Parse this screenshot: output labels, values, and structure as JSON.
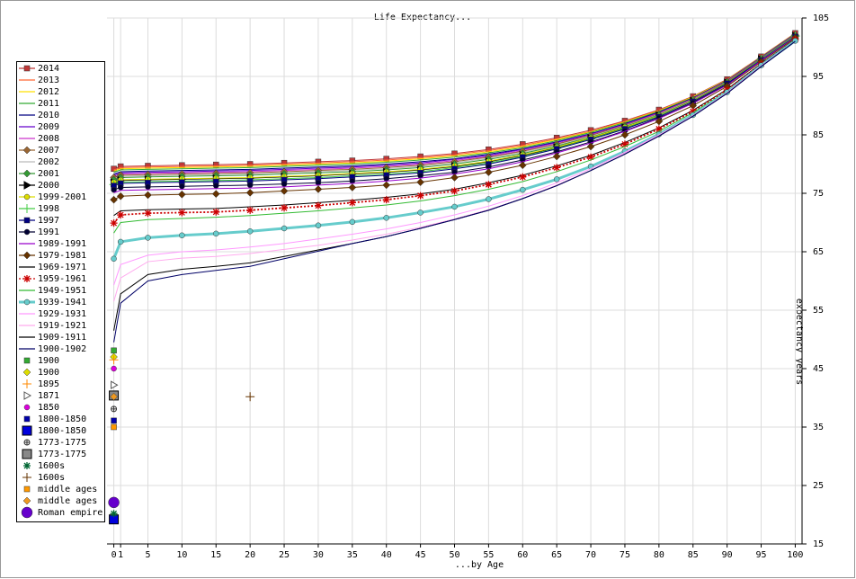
{
  "chart_data": {
    "type": "line",
    "title": "Life Expectancy...",
    "x_label": "...by Age",
    "y_label": "expectancy years",
    "x": [
      0,
      1,
      5,
      10,
      15,
      20,
      25,
      30,
      35,
      40,
      45,
      50,
      55,
      60,
      65,
      70,
      75,
      80,
      85,
      90,
      95,
      100
    ],
    "xticks": [
      0,
      1,
      5,
      10,
      15,
      20,
      25,
      30,
      35,
      40,
      45,
      50,
      55,
      60,
      65,
      70,
      75,
      80,
      85,
      90,
      95,
      100
    ],
    "xlim": [
      -1,
      101
    ],
    "ylim": [
      15,
      105
    ],
    "yticks": [
      15,
      25,
      35,
      45,
      55,
      65,
      75,
      85,
      95,
      105
    ],
    "grid": true,
    "legend": "left",
    "series": [
      {
        "name": "2014",
        "color": "#c03838",
        "marker": "square",
        "values": [
          79.2,
          79.6,
          79.7,
          79.8,
          79.9,
          80.0,
          80.2,
          80.4,
          80.6,
          80.9,
          81.3,
          81.8,
          82.5,
          83.4,
          84.5,
          85.8,
          87.4,
          89.3,
          91.6,
          94.5,
          98.4,
          102.4
        ]
      },
      {
        "name": "2013",
        "color": "#ff6633",
        "marker": "none",
        "values": [
          79.0,
          79.4,
          79.5,
          79.6,
          79.7,
          79.8,
          80.0,
          80.2,
          80.4,
          80.7,
          81.1,
          81.6,
          82.3,
          83.2,
          84.3,
          85.6,
          87.3,
          89.2,
          91.5,
          94.4,
          98.4,
          102.4
        ]
      },
      {
        "name": "2012",
        "color": "#ffe000",
        "marker": "none",
        "values": [
          78.8,
          79.2,
          79.3,
          79.4,
          79.5,
          79.6,
          79.8,
          80.0,
          80.2,
          80.5,
          80.9,
          81.4,
          82.1,
          83.0,
          84.2,
          85.5,
          87.2,
          89.1,
          91.5,
          94.4,
          98.3,
          102.3
        ]
      },
      {
        "name": "2011",
        "color": "#33aa33",
        "marker": "none",
        "values": [
          78.6,
          79.0,
          79.1,
          79.2,
          79.3,
          79.4,
          79.6,
          79.8,
          80.0,
          80.3,
          80.7,
          81.2,
          81.9,
          82.8,
          84.0,
          85.4,
          87.1,
          89.0,
          91.4,
          94.3,
          98.3,
          102.3
        ]
      },
      {
        "name": "2010",
        "color": "#000080",
        "marker": "none",
        "values": [
          78.3,
          78.7,
          78.8,
          78.9,
          79.0,
          79.1,
          79.3,
          79.5,
          79.7,
          80.0,
          80.4,
          80.9,
          81.7,
          82.6,
          83.8,
          85.2,
          86.9,
          88.9,
          91.3,
          94.3,
          98.2,
          102.2
        ]
      },
      {
        "name": "2009",
        "color": "#6600cc",
        "marker": "none",
        "values": [
          78.1,
          78.5,
          78.6,
          78.7,
          78.8,
          78.9,
          79.1,
          79.3,
          79.5,
          79.8,
          80.2,
          80.8,
          81.5,
          82.5,
          83.7,
          85.1,
          86.8,
          88.8,
          91.2,
          94.2,
          98.2,
          102.2
        ]
      },
      {
        "name": "2008",
        "color": "#cc33cc",
        "marker": "none",
        "values": [
          77.9,
          78.3,
          78.4,
          78.5,
          78.6,
          78.7,
          78.9,
          79.1,
          79.3,
          79.6,
          80.0,
          80.6,
          81.3,
          82.3,
          83.5,
          85.0,
          86.7,
          88.7,
          91.2,
          94.2,
          98.1,
          102.1
        ]
      },
      {
        "name": "2007",
        "color": "#996633",
        "marker": "diamond",
        "values": [
          77.7,
          78.1,
          78.2,
          78.3,
          78.4,
          78.5,
          78.7,
          78.9,
          79.1,
          79.4,
          79.8,
          80.4,
          81.2,
          82.2,
          83.4,
          84.9,
          86.6,
          88.6,
          91.1,
          94.1,
          98.1,
          102.1
        ]
      },
      {
        "name": "2002",
        "color": "#bbbbbb",
        "marker": "none",
        "values": [
          77.5,
          77.9,
          78.0,
          78.1,
          78.2,
          78.3,
          78.5,
          78.7,
          78.9,
          79.2,
          79.6,
          80.2,
          81.0,
          82.0,
          83.2,
          84.7,
          86.5,
          88.5,
          91.0,
          94.0,
          98.0,
          102.0
        ]
      },
      {
        "name": "2001",
        "color": "#339933",
        "marker": "diamond",
        "values": [
          77.3,
          77.7,
          77.8,
          77.9,
          78.0,
          78.1,
          78.3,
          78.5,
          78.7,
          79.0,
          79.4,
          80.0,
          80.8,
          81.8,
          83.1,
          84.6,
          86.4,
          88.4,
          90.9,
          94.0,
          98.0,
          102.0
        ]
      },
      {
        "name": "2000",
        "color": "#000000",
        "marker": "triangle",
        "values": [
          76.8,
          77.2,
          77.3,
          77.4,
          77.5,
          77.6,
          77.8,
          78.0,
          78.3,
          78.6,
          79.0,
          79.6,
          80.4,
          81.5,
          82.8,
          84.4,
          86.2,
          88.3,
          90.8,
          93.9,
          97.9,
          101.9
        ]
      },
      {
        "name": "1999-2001",
        "color": "#dddd00",
        "marker": "circle",
        "values": [
          76.9,
          77.3,
          77.4,
          77.5,
          77.6,
          77.7,
          77.9,
          78.1,
          78.4,
          78.7,
          79.1,
          79.7,
          80.5,
          81.6,
          82.9,
          84.5,
          86.3,
          88.3,
          90.8,
          93.9,
          97.9,
          101.9
        ]
      },
      {
        "name": "1998",
        "color": "#44cc44",
        "marker": "plus",
        "values": [
          76.5,
          76.9,
          77.0,
          77.1,
          77.2,
          77.3,
          77.5,
          77.7,
          78.0,
          78.3,
          78.7,
          79.4,
          80.2,
          81.3,
          82.7,
          84.3,
          86.1,
          88.2,
          90.7,
          93.8,
          97.9,
          101.9
        ]
      },
      {
        "name": "1997",
        "color": "#000080",
        "marker": "square",
        "values": [
          76.3,
          76.7,
          76.8,
          76.9,
          77.0,
          77.1,
          77.3,
          77.5,
          77.8,
          78.1,
          78.5,
          79.2,
          80.0,
          81.2,
          82.6,
          84.2,
          86.0,
          88.1,
          90.7,
          93.8,
          97.8,
          101.8
        ]
      },
      {
        "name": "1991",
        "color": "#000033",
        "marker": "circle",
        "values": [
          75.6,
          76.0,
          76.1,
          76.2,
          76.3,
          76.4,
          76.6,
          76.8,
          77.1,
          77.5,
          78.0,
          78.6,
          79.5,
          80.7,
          82.1,
          83.8,
          85.7,
          87.9,
          90.5,
          93.6,
          97.7,
          101.7
        ]
      },
      {
        "name": "1989-1991",
        "color": "#9900cc",
        "marker": "none",
        "values": [
          75.1,
          75.5,
          75.6,
          75.7,
          75.8,
          75.9,
          76.1,
          76.4,
          76.7,
          77.1,
          77.6,
          78.3,
          79.2,
          80.4,
          81.9,
          83.6,
          85.6,
          87.8,
          90.4,
          93.5,
          97.7,
          101.7
        ]
      },
      {
        "name": "1979-1981",
        "color": "#663300",
        "marker": "diamond",
        "values": [
          73.9,
          74.5,
          74.7,
          74.8,
          74.9,
          75.1,
          75.4,
          75.7,
          76.0,
          76.4,
          76.9,
          77.7,
          78.6,
          79.8,
          81.3,
          83.0,
          85.0,
          87.3,
          90.0,
          93.3,
          97.5,
          101.6
        ]
      },
      {
        "name": "1969-1971",
        "color": "#000000",
        "marker": "none",
        "values": [
          71.2,
          72.0,
          72.2,
          72.3,
          72.4,
          72.7,
          73.0,
          73.4,
          73.8,
          74.3,
          74.9,
          75.7,
          76.8,
          78.1,
          79.7,
          81.5,
          83.7,
          86.2,
          89.2,
          92.8,
          97.2,
          101.4
        ]
      },
      {
        "name": "1959-1961",
        "color": "#cc0000",
        "marker": "star",
        "dashed": true,
        "values": [
          69.9,
          71.3,
          71.6,
          71.7,
          71.8,
          72.1,
          72.5,
          72.9,
          73.4,
          73.9,
          74.6,
          75.4,
          76.5,
          77.8,
          79.4,
          81.2,
          83.4,
          86.0,
          89.0,
          92.7,
          97.1,
          101.3
        ]
      },
      {
        "name": "1949-1951",
        "color": "#33bb33",
        "marker": "none",
        "values": [
          68.2,
          70.0,
          70.5,
          70.7,
          70.9,
          71.2,
          71.6,
          72.0,
          72.5,
          73.0,
          73.7,
          74.6,
          75.7,
          77.0,
          78.7,
          80.7,
          83.0,
          85.6,
          88.8,
          92.5,
          97.0,
          101.2
        ]
      },
      {
        "name": "1939-1941",
        "color": "#66cccc",
        "marker": "circle",
        "thick": true,
        "values": [
          63.8,
          66.7,
          67.4,
          67.8,
          68.1,
          68.5,
          69.0,
          69.5,
          70.1,
          70.8,
          71.7,
          72.7,
          74.0,
          75.6,
          77.4,
          79.6,
          82.2,
          85.1,
          88.4,
          92.3,
          96.9,
          101.1
        ]
      },
      {
        "name": "1929-1931",
        "color": "#ff99ff",
        "marker": "none",
        "values": [
          59.3,
          62.8,
          64.4,
          65.0,
          65.3,
          65.8,
          66.4,
          67.2,
          68.0,
          68.9,
          70.0,
          71.3,
          72.8,
          74.6,
          76.8,
          79.2,
          82.0,
          85.0,
          88.3,
          92.2,
          96.8,
          101.0
        ]
      },
      {
        "name": "1919-1921",
        "color": "#ffaaee",
        "marker": "none",
        "values": [
          56.5,
          60.5,
          63.3,
          63.9,
          64.2,
          64.7,
          65.4,
          66.1,
          67.0,
          68.0,
          69.2,
          70.6,
          72.2,
          74.1,
          76.4,
          78.9,
          81.8,
          84.9,
          88.3,
          92.2,
          96.8,
          101.0
        ]
      },
      {
        "name": "1909-1911",
        "color": "#000000",
        "marker": "none",
        "values": [
          51.5,
          57.8,
          61.1,
          62.0,
          62.5,
          63.1,
          64.2,
          65.3,
          66.4,
          67.6,
          69.0,
          70.5,
          72.1,
          74.1,
          76.3,
          78.9,
          81.7,
          84.8,
          88.2,
          92.1,
          96.7,
          101.0
        ]
      },
      {
        "name": "1900-1902",
        "color": "#000066",
        "marker": "none",
        "values": [
          49.5,
          56.2,
          60.0,
          61.1,
          61.8,
          62.5,
          63.8,
          65.1,
          66.4,
          67.6,
          69.0,
          70.5,
          72.1,
          74.1,
          76.3,
          78.9,
          81.7,
          84.8,
          88.2,
          92.1,
          96.7,
          101.0
        ]
      },
      {
        "name": "1900",
        "color": "#33aa33",
        "marker": "square",
        "point": true,
        "x": [
          0
        ],
        "values": [
          48.1
        ]
      },
      {
        "name": "1900",
        "color": "#dddd00",
        "marker": "diamond",
        "point": true,
        "x": [
          0
        ],
        "values": [
          47.0
        ]
      },
      {
        "name": "1895",
        "color": "#ff8800",
        "marker": "plus",
        "point": true,
        "x": [
          0
        ],
        "values": [
          46.5
        ]
      },
      {
        "name": "1871",
        "color": "#555555",
        "marker": "tri-right",
        "point": true,
        "x": [
          0
        ],
        "values": [
          42.2
        ]
      },
      {
        "name": "1850",
        "color": "#dd00dd",
        "marker": "circle",
        "point": true,
        "x": [
          0
        ],
        "values": [
          45.0
        ]
      },
      {
        "name": "1800-1850",
        "color": "#0000aa",
        "marker": "square",
        "point": true,
        "x": [
          0
        ],
        "values": [
          36.1
        ]
      },
      {
        "name": "1800-1850",
        "color": "#0000dd",
        "marker": "bigsquare",
        "point": true,
        "x": [
          0
        ],
        "values": [
          19.2
        ]
      },
      {
        "name": "1773-1775",
        "color": "#333333",
        "marker": "circleplus",
        "point": true,
        "x": [
          0
        ],
        "values": [
          38.1
        ]
      },
      {
        "name": "1773-1775",
        "color": "#888888",
        "marker": "bigsquare",
        "point": true,
        "x": [
          0
        ],
        "values": [
          40.4
        ]
      },
      {
        "name": "1600s",
        "color": "#006633",
        "marker": "star",
        "point": true,
        "x": [
          0
        ],
        "values": [
          20.2
        ]
      },
      {
        "name": "1600s",
        "color": "#663300",
        "marker": "plus",
        "point": true,
        "x": [
          20
        ],
        "values": [
          40.2
        ]
      },
      {
        "name": "middle ages",
        "color": "#ff9900",
        "marker": "square",
        "point": true,
        "x": [
          0
        ],
        "values": [
          35.0
        ]
      },
      {
        "name": "middle ages",
        "color": "#ee9922",
        "marker": "diamond",
        "point": true,
        "x": [
          0
        ],
        "values": [
          40.2
        ]
      },
      {
        "name": "Roman empire",
        "color": "#6600cc",
        "marker": "bigcircle",
        "point": true,
        "x": [
          0
        ],
        "values": [
          22.1
        ]
      }
    ]
  }
}
